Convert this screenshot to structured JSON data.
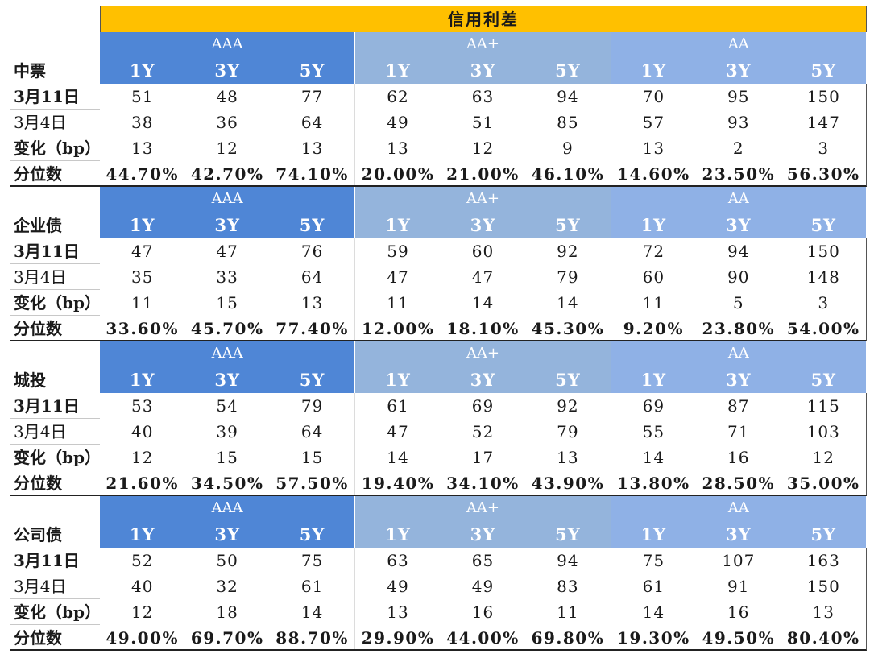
{
  "title": "信用利差",
  "groups": [
    "AAA",
    "AA+",
    "AA"
  ],
  "tenors": [
    "1Y",
    "3Y",
    "5Y"
  ],
  "row_labels": [
    "3月11日",
    "3月4日",
    "变化（bp）",
    "分位数"
  ],
  "sections": [
    {
      "name": "中票",
      "rows": [
        [
          "51",
          "48",
          "77",
          "62",
          "63",
          "94",
          "70",
          "95",
          "150"
        ],
        [
          "38",
          "36",
          "64",
          "49",
          "51",
          "85",
          "57",
          "93",
          "147"
        ],
        [
          "13",
          "12",
          "13",
          "13",
          "12",
          "9",
          "13",
          "2",
          "3"
        ],
        [
          "44.70%",
          "42.70%",
          "74.10%",
          "20.00%",
          "21.00%",
          "46.10%",
          "14.60%",
          "23.50%",
          "56.30%"
        ]
      ]
    },
    {
      "name": "企业债",
      "rows": [
        [
          "47",
          "47",
          "76",
          "59",
          "60",
          "92",
          "72",
          "94",
          "150"
        ],
        [
          "35",
          "33",
          "64",
          "47",
          "47",
          "79",
          "60",
          "90",
          "148"
        ],
        [
          "11",
          "15",
          "13",
          "11",
          "14",
          "14",
          "11",
          "5",
          "3"
        ],
        [
          "33.60%",
          "45.70%",
          "77.40%",
          "12.00%",
          "18.10%",
          "45.30%",
          "9.20%",
          "23.80%",
          "54.00%"
        ]
      ]
    },
    {
      "name": "城投",
      "rows": [
        [
          "53",
          "54",
          "79",
          "61",
          "69",
          "92",
          "69",
          "87",
          "115"
        ],
        [
          "40",
          "39",
          "64",
          "47",
          "52",
          "79",
          "55",
          "71",
          "103"
        ],
        [
          "12",
          "15",
          "15",
          "14",
          "17",
          "13",
          "14",
          "16",
          "12"
        ],
        [
          "21.60%",
          "34.50%",
          "57.50%",
          "19.40%",
          "34.10%",
          "43.90%",
          "13.80%",
          "28.50%",
          "35.00%"
        ]
      ]
    },
    {
      "name": "公司债",
      "rows": [
        [
          "52",
          "50",
          "75",
          "63",
          "65",
          "94",
          "75",
          "107",
          "163"
        ],
        [
          "40",
          "32",
          "61",
          "49",
          "49",
          "83",
          "61",
          "91",
          "150"
        ],
        [
          "12",
          "18",
          "14",
          "13",
          "16",
          "11",
          "14",
          "16",
          "13"
        ],
        [
          "49.00%",
          "69.70%",
          "88.70%",
          "29.90%",
          "44.00%",
          "69.80%",
          "19.30%",
          "49.50%",
          "80.40%"
        ]
      ]
    }
  ],
  "colors": {
    "title_bg": "#ffc000",
    "aaa_header": "#4f86d6",
    "aa_plus_header": "#94b4dc",
    "aa_header": "#8fb1e6"
  }
}
